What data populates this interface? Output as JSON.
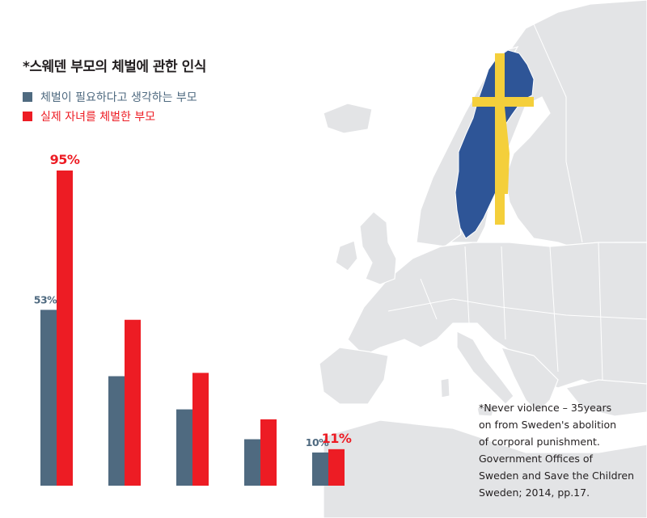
{
  "title": "*스웨덴 부모의 체벌에 관한 인식",
  "legend": [
    {
      "label": "체벌이 필요하다고 생각하는 부모",
      "color": "#4f6a80"
    },
    {
      "label": "실제 자녀를 체벌한 부모",
      "color": "#ed1c24"
    }
  ],
  "chart_data": {
    "type": "bar",
    "categories": [
      "",
      "",
      "",
      "",
      ""
    ],
    "series": [
      {
        "name": "체벌이 필요하다고 생각하는 부모",
        "values": [
          53,
          33,
          23,
          14,
          10
        ],
        "color": "#4f6a80"
      },
      {
        "name": "실제 자녀를 체벌한 부모",
        "values": [
          95,
          50,
          34,
          20,
          11
        ],
        "color": "#ed1c24"
      }
    ],
    "data_labels": [
      {
        "text": "53%",
        "series": 0,
        "index": 0
      },
      {
        "text": "95%",
        "series": 1,
        "index": 0
      },
      {
        "text": "10%",
        "series": 0,
        "index": 4
      },
      {
        "text": "11%",
        "series": 1,
        "index": 4
      }
    ],
    "ylim": [
      0,
      100
    ],
    "grid": false
  },
  "map": {
    "land_color": "#e3e4e6",
    "sweden_color": "#2e5597",
    "cross_color": "#f4cf3b"
  },
  "note": {
    "lines": [
      "*Never violence – 35years",
      "on from Sweden's abolition",
      "of corporal punishment.",
      "Government Offices of",
      "Sweden and Save the Children",
      "Sweden; 2014, pp.17."
    ]
  }
}
